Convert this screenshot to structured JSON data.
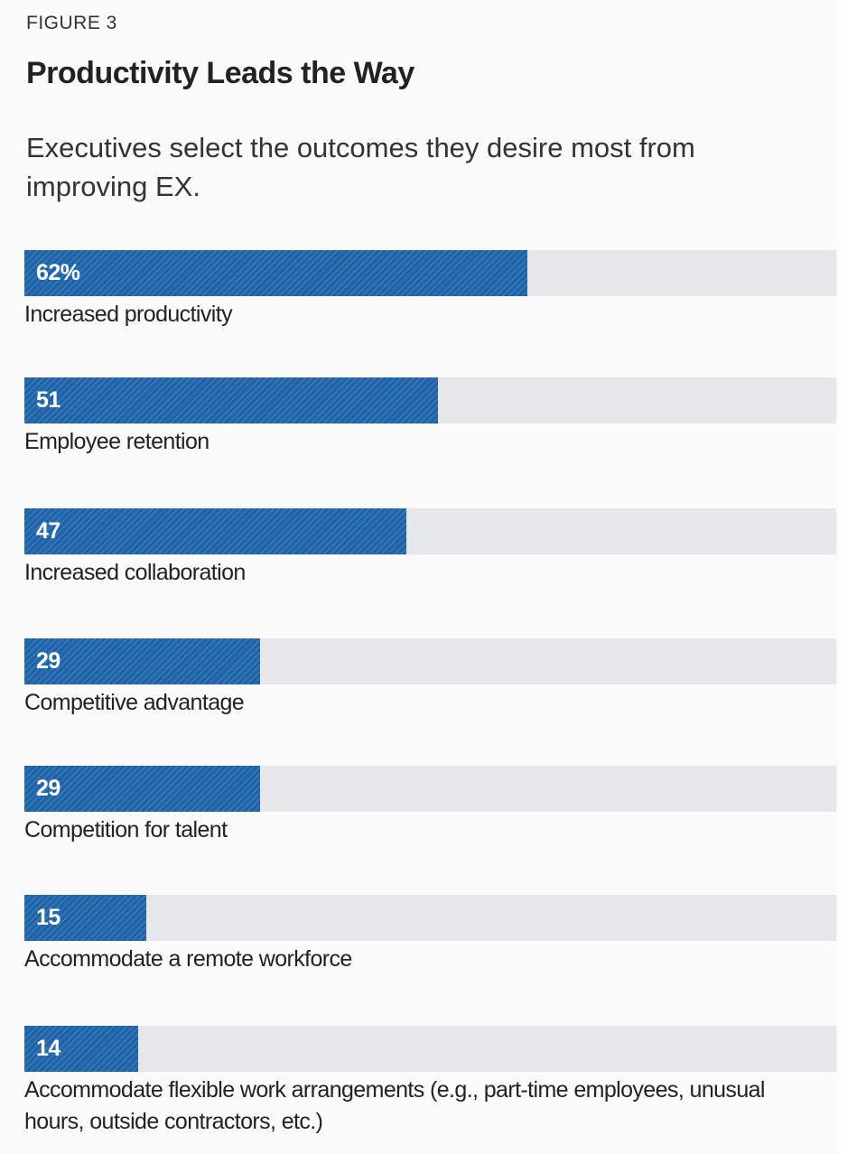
{
  "chart_data": {
    "type": "bar",
    "figure_label": "FIGURE 3",
    "title": "Productivity Leads the Way",
    "subtitle": "Executives select the outcomes they desire most from improving EX.",
    "categories": [
      "Increased productivity",
      "Employee retention",
      "Increased collaboration",
      "Competitive advantage",
      "Competition for talent",
      "Accommodate a remote workforce",
      "Accommodate flexible work arrangements (e.g., part-time employees, unusual hours, outside contractors, etc.)"
    ],
    "values": [
      62,
      51,
      47,
      29,
      29,
      15,
      14
    ],
    "value_labels": [
      "62%",
      "51",
      "47",
      "29",
      "29",
      "15",
      "14"
    ],
    "color": "#1f64a8",
    "xlim": [
      0,
      100
    ]
  }
}
